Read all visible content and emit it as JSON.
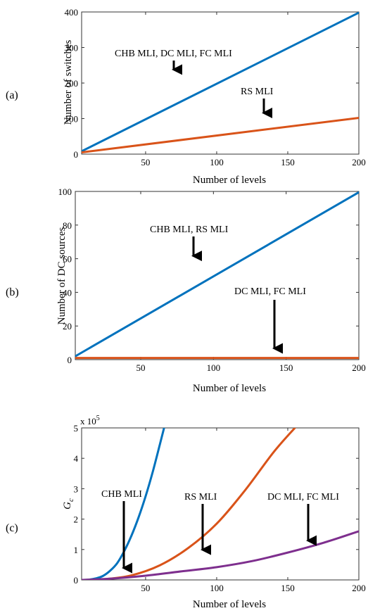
{
  "colors": {
    "blue": "#0072BD",
    "orange": "#D95319",
    "purple": "#7E2F8E"
  },
  "chart_data": [
    {
      "panel_label": "(a)",
      "type": "line",
      "xlabel": "Number of levels",
      "ylabel": "Number of switches",
      "xlim": [
        5,
        200
      ],
      "ylim": [
        0,
        400
      ],
      "xticks": [
        50,
        100,
        150,
        200
      ],
      "yticks": [
        0,
        100,
        200,
        300,
        400
      ],
      "grid": false,
      "series": [
        {
          "x": [
            5,
            200
          ],
          "y": [
            8,
            398
          ],
          "color": "#0072BD"
        },
        {
          "x": [
            5,
            200
          ],
          "y": [
            5,
            102
          ],
          "color": "#D95319"
        }
      ],
      "annotations": [
        {
          "text": "CHB MLI, DC MLI, FC MLI",
          "arrow_to": [
            60,
            230
          ]
        },
        {
          "text": "RS MLI",
          "arrow_to": [
            128,
            108
          ]
        }
      ]
    },
    {
      "panel_label": "(b)",
      "type": "line",
      "xlabel": "Number of levels",
      "ylabel": "Number of DC sources",
      "xlim": [
        5,
        200
      ],
      "ylim": [
        0,
        100
      ],
      "xticks": [
        50,
        100,
        150,
        200
      ],
      "yticks": [
        0,
        20,
        40,
        60,
        80,
        100
      ],
      "grid": false,
      "series": [
        {
          "x": [
            5,
            200
          ],
          "y": [
            2,
            99.5
          ],
          "color": "#0072BD"
        },
        {
          "x": [
            5,
            200
          ],
          "y": [
            1,
            1
          ],
          "color": "#D95319"
        }
      ],
      "annotations": [
        {
          "text": "CHB MLI, RS MLI",
          "arrow_to": [
            78,
            60
          ]
        },
        {
          "text": "DC MLI, FC MLI",
          "arrow_to": [
            137,
            5
          ]
        }
      ]
    },
    {
      "panel_label": "(c)",
      "type": "line",
      "xlabel": "Number of levels",
      "ylabel": "G_c",
      "ylabel_main": "G",
      "ylabel_sub": "c",
      "exponent_base": "x 10",
      "exponent_power": "5",
      "xlim": [
        5,
        200
      ],
      "ylim": [
        0,
        5
      ],
      "xticks": [
        50,
        100,
        150,
        200
      ],
      "yticks": [
        0,
        1,
        2,
        3,
        4,
        5
      ],
      "grid": false,
      "series": [
        {
          "x": [
            5,
            10,
            15,
            20,
            25,
            30,
            35,
            40,
            45,
            50,
            55,
            60,
            63
          ],
          "y": [
            0,
            0.01,
            0.05,
            0.13,
            0.3,
            0.55,
            0.95,
            1.45,
            2.05,
            2.75,
            3.55,
            4.45,
            5.0
          ],
          "color": "#0072BD"
        },
        {
          "x": [
            5,
            20,
            40,
            60,
            80,
            100,
            120,
            140,
            155
          ],
          "y": [
            0,
            0.02,
            0.15,
            0.48,
            1.05,
            1.85,
            2.95,
            4.2,
            5.0
          ],
          "color": "#D95319"
        },
        {
          "x": [
            5,
            25,
            50,
            75,
            100,
            125,
            150,
            175,
            200
          ],
          "y": [
            0,
            0.04,
            0.14,
            0.28,
            0.42,
            0.62,
            0.9,
            1.22,
            1.6
          ],
          "color": "#7E2F8E"
        }
      ],
      "annotations": [
        {
          "text": "CHB MLI",
          "arrow_to": [
            30,
            0.3
          ]
        },
        {
          "text": "RS MLI",
          "arrow_to": [
            85,
            0.9
          ]
        },
        {
          "text": "DC MLI, FC MLI",
          "arrow_to": [
            163,
            1.2
          ]
        }
      ]
    }
  ]
}
